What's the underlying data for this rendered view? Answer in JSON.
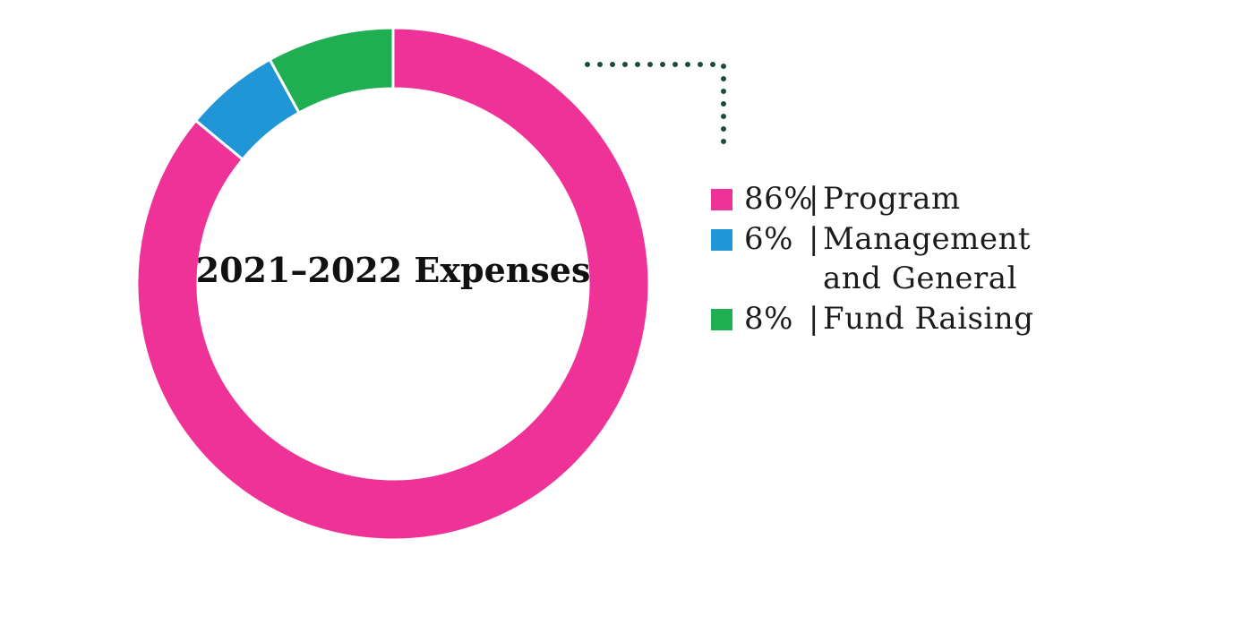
{
  "chart_data": {
    "type": "pie",
    "title": "2021–2022 Expenses",
    "categories": [
      "Program",
      "Management and General",
      "Fund Raising"
    ],
    "values": [
      86,
      6,
      8
    ],
    "value_labels": [
      "86%",
      "6%",
      "8%"
    ],
    "colors": [
      "#ef3297",
      "#2196d6",
      "#1fae52"
    ],
    "separator": "|",
    "legend_position": "right",
    "callout_color": "#1b4d3e"
  }
}
